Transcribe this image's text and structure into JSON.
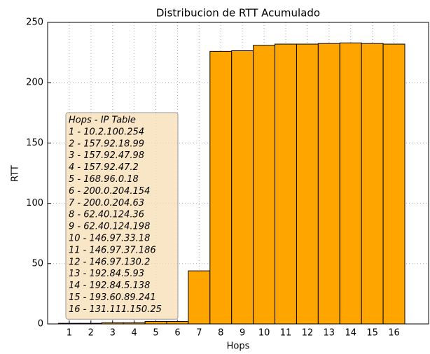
{
  "chart_data": {
    "type": "bar",
    "title": "Distribucion de RTT Acumulado",
    "xlabel": "Hops",
    "ylabel": "RTT",
    "x": [
      1,
      2,
      3,
      4,
      5,
      6,
      7,
      8,
      9,
      10,
      11,
      12,
      13,
      14,
      15,
      16
    ],
    "values": [
      0.5,
      0.5,
      1,
      1,
      2,
      2,
      44,
      226,
      226.5,
      231,
      232,
      232,
      232.5,
      233,
      232.5,
      232
    ],
    "color": "#ffa500",
    "xlim": [
      0,
      17.6
    ],
    "xticks": [
      1,
      2,
      3,
      4,
      5,
      6,
      7,
      8,
      9,
      10,
      11,
      12,
      13,
      14,
      15,
      16
    ],
    "ylim": [
      0,
      250
    ],
    "yticks": [
      0,
      50,
      100,
      150,
      200,
      250
    ],
    "grid": true,
    "table_title": "Hops - IP Table",
    "table_lines": [
      "1 - 10.2.100.254",
      "2 - 157.92.18.99",
      "3 - 157.92.47.98",
      "4 - 157.92.47.2",
      "5 - 168.96.0.18",
      "6 - 200.0.204.154",
      "7 - 200.0.204.63",
      "8 - 62.40.124.36",
      "9 - 62.40.124.198",
      "10 - 146.97.33.18",
      "11 - 146.97.37.186",
      "12 - 146.97.130.2",
      "13 - 192.84.5.93",
      "14 - 192.84.5.138",
      "15 - 193.60.89.241",
      "16 - 131.111.150.25"
    ]
  }
}
